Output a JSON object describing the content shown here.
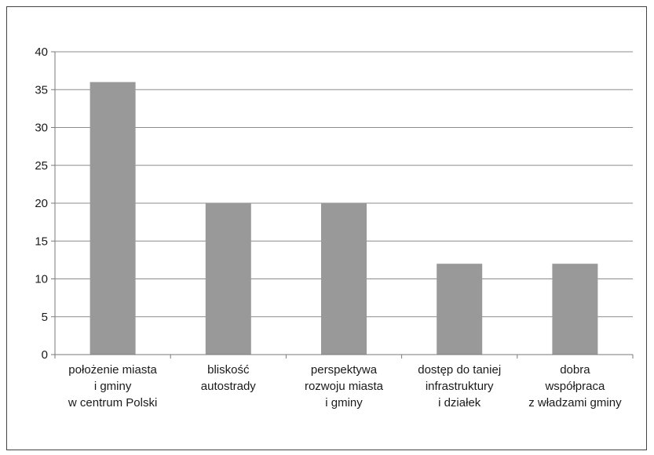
{
  "chart_data": {
    "type": "bar",
    "title": "",
    "xlabel": "",
    "ylabel": "",
    "categories": [
      [
        "położenie miasta",
        "i gminy",
        "w centrum Polski"
      ],
      [
        "bliskość",
        "autostrady"
      ],
      [
        "perspektywa",
        "rozwoju miasta",
        "i gminy"
      ],
      [
        "dostęp do taniej",
        "infrastruktury",
        "i działek"
      ],
      [
        "dobra",
        "współpraca",
        "z władzami gminy"
      ]
    ],
    "values": [
      36,
      20,
      20,
      12,
      12
    ],
    "ylim": [
      0,
      40
    ],
    "yticks": [
      0,
      5,
      10,
      15,
      20,
      25,
      30,
      35,
      40
    ],
    "grid": true,
    "bar_color": "#999999",
    "grid_color": "#8c8c8c"
  }
}
